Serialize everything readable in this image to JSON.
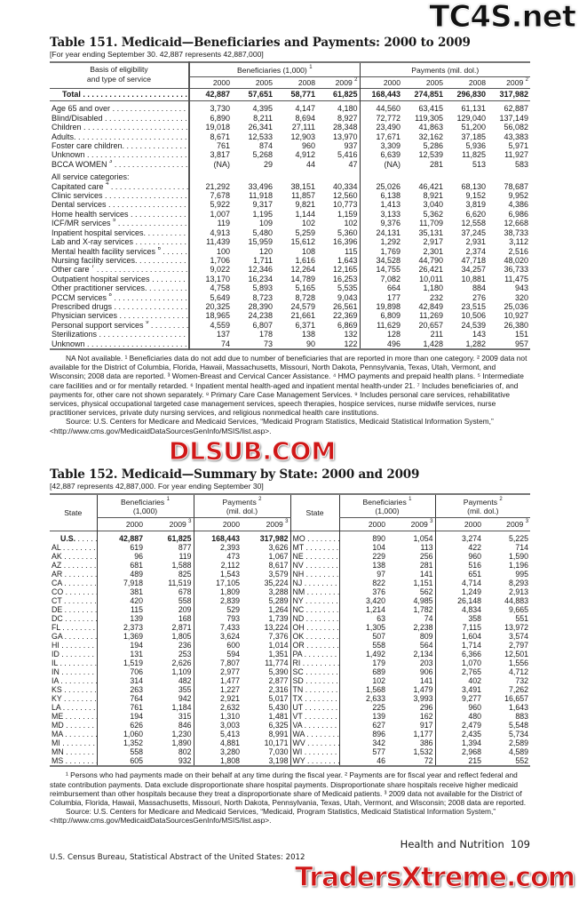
{
  "watermarks": {
    "top": "TC4S.net",
    "middle": "DLSUB.COM",
    "bottom": "TradersXtreme.com"
  },
  "table151": {
    "title": "Table 151. Medicaid—Beneficiaries and Payments: 2000 to 2009",
    "subtitle": "[For year ending September 30. 42,887 represents 42,887,000]",
    "stub_header": [
      "Basis of eligibility",
      "and type of service"
    ],
    "group_beneficiaries": "Beneficiaries (1,000)",
    "group_beneficiaries_note": "1",
    "group_payments": "Payments (mil. dol.)",
    "years": [
      "2000",
      "2005",
      "2008",
      "2009"
    ],
    "year_note_2009": "2",
    "total": {
      "label": "Total",
      "values": [
        "42,887",
        "57,651",
        "58,771",
        "61,825",
        "168,443",
        "274,851",
        "296,830",
        "317,982"
      ]
    },
    "eligibility_rows": [
      {
        "label": "Age 65 and over",
        "note": "",
        "values": [
          "3,730",
          "4,395",
          "4,147",
          "4,180",
          "44,560",
          "63,415",
          "61,131",
          "62,887"
        ]
      },
      {
        "label": "Blind/Disabled",
        "note": "",
        "values": [
          "6,890",
          "8,211",
          "8,694",
          "8,927",
          "72,772",
          "119,305",
          "129,040",
          "137,149"
        ]
      },
      {
        "label": "Children",
        "note": "",
        "values": [
          "19,018",
          "26,341",
          "27,111",
          "28,348",
          "23,490",
          "41,863",
          "51,200",
          "56,082"
        ]
      },
      {
        "label": "Adults.",
        "note": "",
        "values": [
          "8,671",
          "12,533",
          "12,903",
          "13,970",
          "17,671",
          "32,162",
          "37,185",
          "43,383"
        ]
      },
      {
        "label": "Foster care children.",
        "note": "",
        "values": [
          "761",
          "874",
          "960",
          "937",
          "3,309",
          "5,286",
          "5,936",
          "5,971"
        ]
      },
      {
        "label": "Unknown",
        "note": "",
        "values": [
          "3,817",
          "5,268",
          "4,912",
          "5,416",
          "6,639",
          "12,539",
          "11,825",
          "11,927"
        ]
      },
      {
        "label": "BCCA WOMEN",
        "note": "3",
        "values": [
          "(NA)",
          "29",
          "44",
          "47",
          "(NA)",
          "281",
          "513",
          "583"
        ]
      }
    ],
    "service_heading": "All service categories:",
    "service_rows": [
      {
        "label": "Capitated care",
        "note": "4",
        "values": [
          "21,292",
          "33,496",
          "38,151",
          "40,334",
          "25,026",
          "46,421",
          "68,130",
          "78,687"
        ]
      },
      {
        "label": "Clinic services",
        "note": "",
        "values": [
          "7,678",
          "11,918",
          "11,857",
          "12,560",
          "6,138",
          "8,921",
          "9,152",
          "9,952"
        ]
      },
      {
        "label": "Dental services",
        "note": "",
        "values": [
          "5,922",
          "9,317",
          "9,821",
          "10,773",
          "1,413",
          "3,040",
          "3,819",
          "4,386"
        ]
      },
      {
        "label": "Home health services",
        "note": "",
        "values": [
          "1,007",
          "1,195",
          "1,144",
          "1,159",
          "3,133",
          "5,362",
          "6,620",
          "6,986"
        ]
      },
      {
        "label": "ICF/MR services",
        "note": "5",
        "values": [
          "119",
          "109",
          "102",
          "102",
          "9,376",
          "11,709",
          "12,558",
          "12,668"
        ]
      },
      {
        "label": "Inpatient hospital services.",
        "note": "",
        "values": [
          "4,913",
          "5,480",
          "5,259",
          "5,360",
          "24,131",
          "35,131",
          "37,245",
          "38,733"
        ]
      },
      {
        "label": "Lab and X-ray services",
        "note": "",
        "values": [
          "11,439",
          "15,959",
          "15,612",
          "16,396",
          "1,292",
          "2,917",
          "2,931",
          "3,112"
        ]
      },
      {
        "label": "Mental health facility services",
        "note": "6",
        "values": [
          "100",
          "120",
          "108",
          "115",
          "1,769",
          "2,301",
          "2,374",
          "2,516"
        ]
      },
      {
        "label": "Nursing facility services.",
        "note": "",
        "values": [
          "1,706",
          "1,711",
          "1,616",
          "1,643",
          "34,528",
          "44,790",
          "47,718",
          "48,020"
        ]
      },
      {
        "label": "Other care",
        "note": "7",
        "values": [
          "9,022",
          "12,346",
          "12,264",
          "12,165",
          "14,755",
          "26,421",
          "34,257",
          "36,733"
        ]
      },
      {
        "label": "Outpatient hospital services",
        "note": "",
        "values": [
          "13,170",
          "16,234",
          "14,789",
          "16,253",
          "7,082",
          "10,011",
          "10,881",
          "11,475"
        ]
      },
      {
        "label": "Other practitioner services.",
        "note": "",
        "values": [
          "4,758",
          "5,893",
          "5,165",
          "5,535",
          "664",
          "1,180",
          "884",
          "943"
        ]
      },
      {
        "label": "PCCM services",
        "note": "8",
        "values": [
          "5,649",
          "8,723",
          "8,728",
          "9,043",
          "177",
          "232",
          "276",
          "320"
        ]
      },
      {
        "label": "Prescribed drugs",
        "note": "",
        "values": [
          "20,325",
          "28,390",
          "24,579",
          "26,561",
          "19,898",
          "42,849",
          "23,515",
          "25,036"
        ]
      },
      {
        "label": "Physician services",
        "note": "",
        "values": [
          "18,965",
          "24,238",
          "21,661",
          "22,369",
          "6,809",
          "11,269",
          "10,506",
          "10,927"
        ]
      },
      {
        "label": "Personal support services",
        "note": "9",
        "values": [
          "4,559",
          "6,807",
          "6,371",
          "6,869",
          "11,629",
          "20,657",
          "24,539",
          "26,380"
        ]
      },
      {
        "label": "Sterilizations",
        "note": "",
        "values": [
          "137",
          "178",
          "138",
          "132",
          "128",
          "211",
          "143",
          "151"
        ]
      },
      {
        "label": "Unknown",
        "note": "",
        "values": [
          "74",
          "73",
          "90",
          "122",
          "496",
          "1,428",
          "1,282",
          "957"
        ]
      }
    ],
    "footnotes": "NA Not available. ¹ Beneficiaries data do not add due to number of beneficiaries that are reported in more than one category. ² 2009 data not available for the District of Columbia, Florida, Hawaii, Massachusetts, Missouri, North Dakota, Pennsylvania, Texas, Utah, Vermont, and Wisconsin; 2008 data are reported. ³ Women-Breast and Cervical Cancer Assistance. ⁴ HMO payments and prepaid health plans. ⁵ Intermediate care facilities and or for mentally retarded. ⁶ Inpatient mental health-aged and inpatient mental health-under 21. ⁷ Includes beneficiaries of, and payments for, other care not shown separately. ⁸ Primary Care Case Management Services. ⁹ Includes personal care services, rehabilitative services, physical occupational targeted case management services, speech therapies, hospice services, nurse midwife services, nurse practitioner services, private duty nursing services, and religious nonmedical health care institutions.",
    "source": "Source: U.S. Centers for Medicare and Medicaid Services, “Medicaid Program Statistics, Medicaid Statistical Information System,” <http://www.cms.gov/MedicaidDataSourcesGenInfo/MSIS/list.asp>."
  },
  "table152": {
    "title": "Table 152. Medicaid—Summary by State: 2000 and 2009",
    "subtitle": "[42,887 represents 42,887,000. For year ending September 30]",
    "state_header": "State",
    "group_beneficiaries": [
      "Beneficiaries",
      "(1,000)"
    ],
    "group_beneficiaries_note": "1",
    "group_payments": [
      "Payments",
      "(mil. dol.)"
    ],
    "group_payments_note": "2",
    "years": [
      "2000",
      "2009"
    ],
    "year_note_2009": "3",
    "left_rows": [
      {
        "state": "U.S.",
        "values": [
          "42,887",
          "61,825",
          "168,443",
          "317,982"
        ]
      },
      {
        "state": "AL",
        "values": [
          "619",
          "877",
          "2,393",
          "3,626"
        ]
      },
      {
        "state": "AK",
        "values": [
          "96",
          "119",
          "473",
          "1,067"
        ]
      },
      {
        "state": "AZ",
        "values": [
          "681",
          "1,588",
          "2,112",
          "8,617"
        ]
      },
      {
        "state": "AR",
        "values": [
          "489",
          "825",
          "1,543",
          "3,579"
        ]
      },
      {
        "state": "CA",
        "values": [
          "7,918",
          "11,519",
          "17,105",
          "35,224"
        ]
      },
      {
        "state": "CO",
        "values": [
          "381",
          "678",
          "1,809",
          "3,288"
        ]
      },
      {
        "state": "CT",
        "values": [
          "420",
          "558",
          "2,839",
          "5,289"
        ]
      },
      {
        "state": "DE",
        "values": [
          "115",
          "209",
          "529",
          "1,264"
        ]
      },
      {
        "state": "DC",
        "values": [
          "139",
          "168",
          "793",
          "1,739"
        ]
      },
      {
        "state": "FL",
        "values": [
          "2,373",
          "2,871",
          "7,433",
          "13,224"
        ]
      },
      {
        "state": "GA",
        "values": [
          "1,369",
          "1,805",
          "3,624",
          "7,376"
        ]
      },
      {
        "state": "HI",
        "values": [
          "194",
          "236",
          "600",
          "1,014"
        ]
      },
      {
        "state": "ID",
        "values": [
          "131",
          "253",
          "594",
          "1,351"
        ]
      },
      {
        "state": "IL",
        "values": [
          "1,519",
          "2,626",
          "7,807",
          "11,774"
        ]
      },
      {
        "state": "IN",
        "values": [
          "706",
          "1,109",
          "2,977",
          "5,390"
        ]
      },
      {
        "state": "IA",
        "values": [
          "314",
          "482",
          "1,477",
          "2,877"
        ]
      },
      {
        "state": "KS",
        "values": [
          "263",
          "355",
          "1,227",
          "2,316"
        ]
      },
      {
        "state": "KY",
        "values": [
          "764",
          "942",
          "2,921",
          "5,017"
        ]
      },
      {
        "state": "LA",
        "values": [
          "761",
          "1,184",
          "2,632",
          "5,430"
        ]
      },
      {
        "state": "ME",
        "values": [
          "194",
          "315",
          "1,310",
          "1,481"
        ]
      },
      {
        "state": "MD",
        "values": [
          "626",
          "846",
          "3,003",
          "6,325"
        ]
      },
      {
        "state": "MA",
        "values": [
          "1,060",
          "1,230",
          "5,413",
          "8,991"
        ]
      },
      {
        "state": "MI",
        "values": [
          "1,352",
          "1,890",
          "4,881",
          "10,171"
        ]
      },
      {
        "state": "MN",
        "values": [
          "558",
          "802",
          "3,280",
          "7,030"
        ]
      },
      {
        "state": "MS",
        "values": [
          "605",
          "932",
          "1,808",
          "3,198"
        ]
      }
    ],
    "right_rows": [
      {
        "state": "MO",
        "values": [
          "890",
          "1,054",
          "3,274",
          "5,225"
        ]
      },
      {
        "state": "MT",
        "values": [
          "104",
          "113",
          "422",
          "714"
        ]
      },
      {
        "state": "NE",
        "values": [
          "229",
          "256",
          "960",
          "1,590"
        ]
      },
      {
        "state": "NV",
        "values": [
          "138",
          "281",
          "516",
          "1,196"
        ]
      },
      {
        "state": "NH",
        "values": [
          "97",
          "141",
          "651",
          "995"
        ]
      },
      {
        "state": "NJ",
        "values": [
          "822",
          "1,151",
          "4,714",
          "8,293"
        ]
      },
      {
        "state": "NM",
        "values": [
          "376",
          "562",
          "1,249",
          "2,913"
        ]
      },
      {
        "state": "NY",
        "values": [
          "3,420",
          "4,985",
          "26,148",
          "44,883"
        ]
      },
      {
        "state": "NC",
        "values": [
          "1,214",
          "1,782",
          "4,834",
          "9,665"
        ]
      },
      {
        "state": "ND",
        "values": [
          "63",
          "74",
          "358",
          "551"
        ]
      },
      {
        "state": "OH",
        "values": [
          "1,305",
          "2,238",
          "7,115",
          "13,972"
        ]
      },
      {
        "state": "OK",
        "values": [
          "507",
          "809",
          "1,604",
          "3,574"
        ]
      },
      {
        "state": "OR",
        "values": [
          "558",
          "564",
          "1,714",
          "2,797"
        ]
      },
      {
        "state": "PA",
        "values": [
          "1,492",
          "2,134",
          "6,366",
          "12,501"
        ]
      },
      {
        "state": "RI",
        "values": [
          "179",
          "203",
          "1,070",
          "1,556"
        ]
      },
      {
        "state": "SC",
        "values": [
          "689",
          "906",
          "2,765",
          "4,712"
        ]
      },
      {
        "state": "SD",
        "values": [
          "102",
          "141",
          "402",
          "732"
        ]
      },
      {
        "state": "TN",
        "values": [
          "1,568",
          "1,479",
          "3,491",
          "7,262"
        ]
      },
      {
        "state": "TX",
        "values": [
          "2,633",
          "3,993",
          "9,277",
          "16,657"
        ]
      },
      {
        "state": "UT",
        "values": [
          "225",
          "296",
          "960",
          "1,643"
        ]
      },
      {
        "state": "VT",
        "values": [
          "139",
          "162",
          "480",
          "883"
        ]
      },
      {
        "state": "VA",
        "values": [
          "627",
          "917",
          "2,479",
          "5,548"
        ]
      },
      {
        "state": "WA",
        "values": [
          "896",
          "1,177",
          "2,435",
          "5,734"
        ]
      },
      {
        "state": "WV",
        "values": [
          "342",
          "386",
          "1,394",
          "2,589"
        ]
      },
      {
        "state": "WI",
        "values": [
          "577",
          "1,532",
          "2,968",
          "4,589"
        ]
      },
      {
        "state": "WY",
        "values": [
          "46",
          "72",
          "215",
          "552"
        ]
      }
    ],
    "footnotes": "¹ Persons who had payments made on their behalf at any time during the fiscal year. ² Payments are for fiscal year and reflect federal and state contribution payments. Data exclude disproportionate share hospital payments. Disproportionate share hospitals receive higher medicaid reimbursement than other hospitals because they treat a disproportionate share of Medicaid patients. ³ 2009 data not available for the District of Columbia, Florida, Hawaii, Massachusetts, Missouri, North Dakota, Pennsylvania, Texas, Utah, Vermont, and Wisconsin; 2008 data are reported.",
    "source": "Source: U.S. Centers for Medicare and Medicaid Services, “Medicaid, Program Statistics, Medicaid Statistical Information System,” <http://www.cms.gov/MedicaidDataSourcesGenInfo/MSIS/list.asp>."
  },
  "footer": {
    "section": "Health and Nutrition",
    "page_number": "109",
    "publication": "U.S. Census Bureau, Statistical Abstract of the United States: 2012"
  }
}
